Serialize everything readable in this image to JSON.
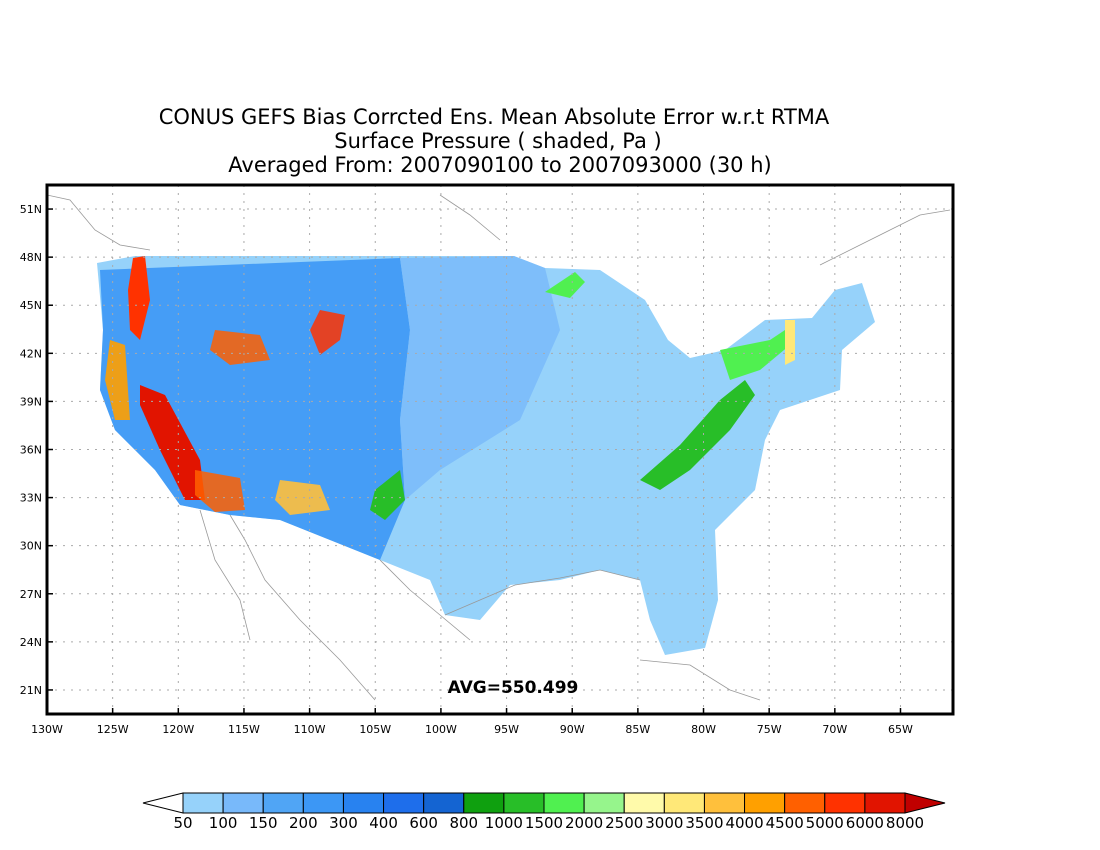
{
  "title": {
    "line1": "CONUS GEFS Bias Corrcted Ens. Mean Absolute Error w.r.t RTMA",
    "line2": "Surface Pressure ( shaded, Pa )",
    "line3": "Averaged From: 2007090100 to 2007093000 (30 h)"
  },
  "map": {
    "lon_range": [
      -130,
      -61
    ],
    "lat_range": [
      19.5,
      52.5
    ],
    "lon_ticks": [
      {
        "value": -130,
        "label": "130W"
      },
      {
        "value": -125,
        "label": "125W"
      },
      {
        "value": -120,
        "label": "120W"
      },
      {
        "value": -115,
        "label": "115W"
      },
      {
        "value": -110,
        "label": "110W"
      },
      {
        "value": -105,
        "label": "105W"
      },
      {
        "value": -100,
        "label": "100W"
      },
      {
        "value": -95,
        "label": "95W"
      },
      {
        "value": -90,
        "label": "90W"
      },
      {
        "value": -85,
        "label": "85W"
      },
      {
        "value": -80,
        "label": "80W"
      },
      {
        "value": -75,
        "label": "75W"
      },
      {
        "value": -70,
        "label": "70W"
      },
      {
        "value": -65,
        "label": "65W"
      }
    ],
    "lat_ticks": [
      {
        "value": 51,
        "label": "51N"
      },
      {
        "value": 48,
        "label": "48N"
      },
      {
        "value": 45,
        "label": "45N"
      },
      {
        "value": 42,
        "label": "42N"
      },
      {
        "value": 39,
        "label": "39N"
      },
      {
        "value": 36,
        "label": "36N"
      },
      {
        "value": 33,
        "label": "33N"
      },
      {
        "value": 30,
        "label": "30N"
      },
      {
        "value": 27,
        "label": "27N"
      },
      {
        "value": 24,
        "label": "24N"
      },
      {
        "value": 21,
        "label": "21N"
      }
    ],
    "grid": true,
    "avg_label": "AVG=550.499"
  },
  "colorbar": {
    "labels": [
      "50",
      "100",
      "150",
      "200",
      "300",
      "400",
      "600",
      "800",
      "1000",
      "1500",
      "2000",
      "2500",
      "3000",
      "3500",
      "4000",
      "4500",
      "5000",
      "6000",
      "8000"
    ],
    "colors": [
      "#ffffff",
      "#96d2fa",
      "#78b9fa",
      "#50a5f5",
      "#3c97f5",
      "#2882f0",
      "#1e6eeb",
      "#1464d2",
      "#0fa00f",
      "#28be28",
      "#50f050",
      "#96f58c",
      "#fffaaa",
      "#ffe878",
      "#ffc03c",
      "#ffa000",
      "#ff6000",
      "#ff3200",
      "#e11400",
      "#c00000"
    ]
  }
}
